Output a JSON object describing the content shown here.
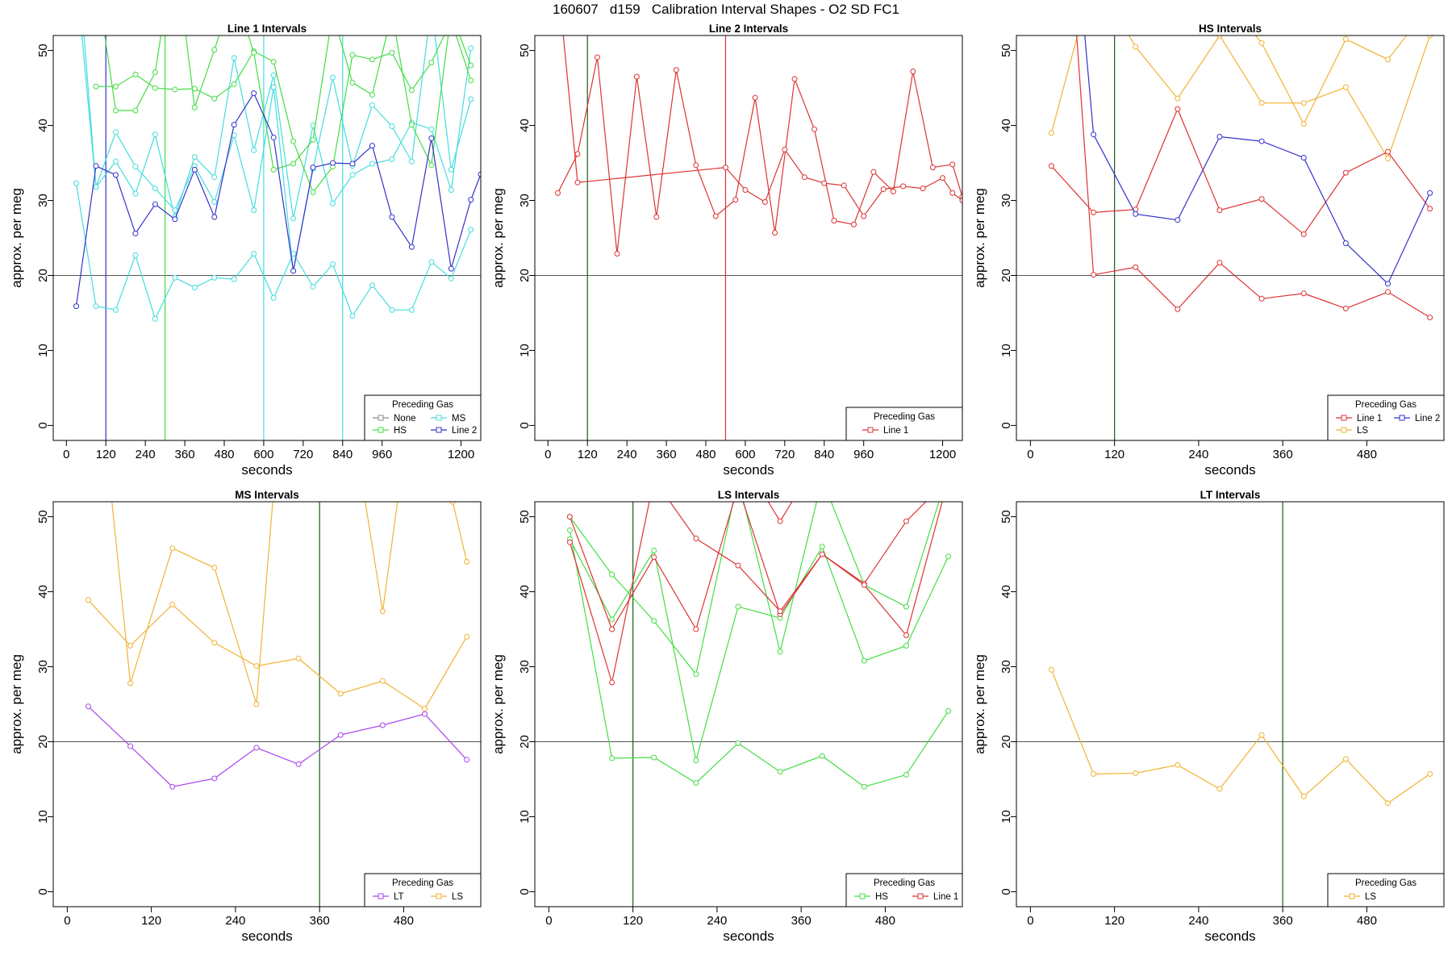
{
  "title": "160607   d159   Calibration Interval Shapes - O2 SD FC1",
  "colors": {
    "None": "#888888",
    "HS": "#44dd44",
    "MS": "#44dddd",
    "Line 2": "#3333cc",
    "Line 1": "#dd3333",
    "LS": "#f2b233",
    "LT": "#aa44ee",
    "hline": "#555555"
  },
  "chart_data": [
    {
      "type": "line",
      "title": "Line 1 Intervals",
      "xlabel": "seconds",
      "ylabel": "approx. per meg",
      "xlim": [
        -40,
        1260
      ],
      "ylim": [
        -2,
        52
      ],
      "xticks": [
        0,
        120,
        240,
        360,
        480,
        600,
        720,
        840,
        960,
        1200
      ],
      "yticks": [
        0,
        10,
        20,
        30,
        40,
        50
      ],
      "hline": 20,
      "vlines": [
        {
          "x": 120,
          "series": "Line 2"
        },
        {
          "x": 300,
          "series": "HS"
        },
        {
          "x": 600,
          "series": "MS"
        },
        {
          "x": 840,
          "series": "MS"
        }
      ],
      "legend": {
        "title": "Preceding Gas",
        "entries": [
          "None",
          "MS",
          "HS",
          "Line 2"
        ],
        "position": "bottom-right",
        "columns": 2
      },
      "series": [
        {
          "name": "MS",
          "x": [
            30,
            90,
            150,
            210,
            270,
            330,
            390,
            450,
            510,
            570,
            630,
            690,
            750,
            810,
            870,
            930,
            990,
            1050,
            1110,
            1170,
            1230
          ],
          "y": [
            32.3,
            15.9,
            15.4,
            22.7,
            14.2,
            19.7,
            18.4,
            19.7,
            19.5,
            22.9,
            17.0,
            22.9,
            18.5,
            21.5,
            14.6,
            18.7,
            15.4,
            15.4,
            21.8,
            19.6,
            26.1
          ]
        },
        {
          "name": "MS",
          "x": [
            30,
            90,
            150,
            210,
            270,
            330,
            390,
            450,
            510,
            570,
            630,
            690,
            750,
            810,
            870,
            930,
            990,
            1050,
            1110,
            1170,
            1230
          ],
          "y": [
            60.0,
            31.8,
            35.2,
            30.9,
            38.8,
            27.8,
            35.8,
            33.1,
            49.0,
            36.7,
            46.7,
            27.6,
            40.0,
            29.6,
            33.4,
            34.9,
            35.5,
            40.4,
            39.5,
            31.4,
            50.3
          ]
        },
        {
          "name": "MS",
          "x": [
            30,
            90,
            150,
            210,
            270,
            330,
            390,
            450,
            510,
            570,
            630,
            690,
            750,
            810,
            870,
            930,
            990,
            1050,
            1110,
            1170,
            1230
          ],
          "y": [
            65.0,
            31.8,
            39.1,
            34.5,
            31.6,
            28.7,
            34.6,
            29.8,
            38.7,
            28.7,
            45.1,
            20.6,
            34.2,
            46.4,
            34.6,
            42.7,
            39.9,
            35.2,
            56.0,
            34.1,
            43.5
          ]
        },
        {
          "name": "HS",
          "x": [
            90,
            150,
            210,
            270,
            330,
            390,
            450,
            510,
            570,
            630,
            690,
            750,
            810,
            870,
            930,
            990,
            1050,
            1110,
            1170,
            1230
          ],
          "y": [
            45.2,
            45.2,
            46.8,
            45.0,
            44.8,
            44.9,
            43.6,
            45.5,
            49.9,
            48.5,
            37.9,
            31.1,
            34.5,
            49.4,
            48.8,
            49.7,
            44.7,
            48.4,
            54.0,
            46.0
          ]
        },
        {
          "name": "HS",
          "x": [
            90,
            150,
            210,
            270,
            330,
            390,
            450,
            510,
            570,
            630,
            690,
            750,
            810,
            870,
            930,
            990,
            1050,
            1110,
            1170,
            1230
          ],
          "y": [
            60.0,
            42.0,
            42.0,
            47.1,
            64.0,
            42.4,
            50.1,
            58.0,
            49.7,
            34.1,
            34.9,
            38.1,
            55.0,
            45.7,
            44.1,
            55.0,
            40.1,
            34.7,
            55.0,
            48.0
          ]
        },
        {
          "name": "Line 2",
          "x": [
            30,
            90,
            150,
            210,
            270,
            330,
            390,
            450,
            510,
            570,
            630,
            690,
            750,
            810,
            870,
            930,
            990,
            1050,
            1110,
            1170,
            1230,
            1260
          ],
          "y": [
            15.9,
            34.6,
            33.4,
            25.6,
            29.5,
            27.5,
            34.1,
            27.8,
            40.1,
            44.3,
            38.4,
            20.6,
            34.4,
            35.0,
            34.9,
            37.3,
            27.8,
            23.8,
            38.3,
            20.9,
            30.1,
            33.5
          ]
        }
      ]
    },
    {
      "type": "line",
      "title": "Line 2 Intervals",
      "xlabel": "seconds",
      "ylabel": "approx. per meg",
      "xlim": [
        -40,
        1260
      ],
      "ylim": [
        -2,
        52
      ],
      "xticks": [
        0,
        120,
        240,
        360,
        480,
        600,
        720,
        840,
        960,
        1200
      ],
      "yticks": [
        0,
        10,
        20,
        30,
        40,
        50
      ],
      "hline": 20,
      "vlines": [
        {
          "x": 120,
          "series": "dark"
        },
        {
          "x": 540,
          "series": "Line 1"
        }
      ],
      "legend": {
        "title": "Preceding Gas",
        "entries": [
          "Line 1"
        ],
        "position": "bottom-right",
        "columns": 1
      },
      "series": [
        {
          "name": "Line 1",
          "x": [
            30,
            90,
            150,
            210,
            270,
            330,
            390,
            450,
            510,
            570,
            630,
            690,
            750,
            810,
            870,
            930,
            990,
            1050,
            1110,
            1170,
            1230,
            1260
          ],
          "y": [
            31.0,
            36.2,
            49.1,
            22.9,
            46.5,
            27.8,
            47.4,
            34.7,
            27.9,
            30.1,
            43.7,
            25.7,
            46.2,
            39.5,
            27.3,
            26.8,
            33.8,
            31.2,
            47.2,
            34.4,
            34.8,
            30.5
          ]
        },
        {
          "name": "Line 1",
          "x": [
            40,
            90,
            540,
            600,
            660,
            720,
            780,
            840,
            900,
            960,
            1020,
            1080,
            1140,
            1200,
            1230,
            1260
          ],
          "y": [
            55.0,
            32.4,
            34.4,
            31.4,
            29.8,
            36.8,
            33.1,
            32.3,
            32.0,
            27.9,
            31.5,
            31.9,
            31.6,
            33.0,
            31.0,
            30.0
          ]
        }
      ]
    },
    {
      "type": "line",
      "title": "HS Intervals",
      "xlabel": "seconds",
      "ylabel": "approx. per meg",
      "xlim": [
        -20,
        590
      ],
      "ylim": [
        -2,
        52
      ],
      "xticks": [
        0,
        120,
        240,
        360,
        480
      ],
      "yticks": [
        0,
        10,
        20,
        30,
        40,
        50
      ],
      "hline": 20,
      "vlines": [
        {
          "x": 120,
          "series": "dark"
        }
      ],
      "legend": {
        "title": "Preceding Gas",
        "entries": [
          "Line 1",
          "Line 2",
          "LS"
        ],
        "position": "bottom-right",
        "columns": 2
      },
      "series": [
        {
          "name": "LS",
          "x": [
            30,
            90,
            150,
            210,
            270,
            330,
            390,
            450,
            510,
            570
          ],
          "y": [
            39.0,
            60.0,
            50.5,
            43.6,
            52.0,
            43.0,
            43.0,
            45.1,
            35.6,
            52.0
          ]
        },
        {
          "name": "LS",
          "x": [
            150,
            210,
            270,
            330,
            390,
            450,
            510,
            570
          ],
          "y": [
            53.0,
            54.0,
            58.0,
            51.0,
            40.2,
            51.5,
            48.8,
            56.0
          ]
        },
        {
          "name": "Line 1",
          "x": [
            30,
            90,
            150,
            210,
            270,
            330,
            390,
            450,
            510,
            570
          ],
          "y": [
            34.6,
            28.4,
            28.8,
            42.2,
            28.7,
            30.2,
            25.5,
            33.7,
            36.5,
            28.9
          ]
        },
        {
          "name": "Line 1",
          "x": [
            60,
            90,
            150,
            210,
            270,
            330,
            390,
            450,
            510,
            570
          ],
          "y": [
            60.0,
            20.1,
            21.1,
            15.5,
            21.7,
            16.9,
            17.6,
            15.6,
            17.8,
            14.4
          ]
        },
        {
          "name": "Line 2",
          "x": [
            70,
            90,
            150,
            210,
            270,
            330,
            390,
            450,
            510,
            570
          ],
          "y": [
            60.0,
            38.8,
            28.2,
            27.4,
            38.5,
            37.9,
            35.7,
            24.3,
            18.9,
            31.0
          ]
        }
      ]
    },
    {
      "type": "line",
      "title": "MS Intervals",
      "xlabel": "seconds",
      "ylabel": "approx. per meg",
      "xlim": [
        -20,
        590
      ],
      "ylim": [
        -2,
        52
      ],
      "xticks": [
        0,
        120,
        240,
        360,
        480
      ],
      "yticks": [
        0,
        10,
        20,
        30,
        40,
        50
      ],
      "hline": 20,
      "vlines": [
        {
          "x": 360,
          "series": "dark"
        }
      ],
      "legend": {
        "title": "Preceding Gas",
        "entries": [
          "LT",
          "LS"
        ],
        "position": "bottom-right",
        "columns": 2
      },
      "series": [
        {
          "name": "LS",
          "x": [
            30,
            90,
            150,
            210,
            270,
            330,
            390,
            450,
            510,
            570
          ],
          "y": [
            38.9,
            32.8,
            38.3,
            33.2,
            30.1,
            31.1,
            26.4,
            28.1,
            24.4,
            34.0
          ]
        },
        {
          "name": "LS",
          "x": [
            55,
            90,
            150,
            210,
            270,
            300
          ],
          "y": [
            60.0,
            27.8,
            45.8,
            43.2,
            25.0,
            60.0
          ]
        },
        {
          "name": "LS",
          "x": [
            420,
            450,
            480
          ],
          "y": [
            55.0,
            37.4,
            58.0
          ]
        },
        {
          "name": "LS",
          "x": [
            550,
            570
          ],
          "y": [
            52.0,
            44.0
          ]
        },
        {
          "name": "LT",
          "x": [
            30,
            90,
            150,
            210,
            270,
            330,
            390,
            450,
            510,
            570
          ],
          "y": [
            24.7,
            19.4,
            14.0,
            15.1,
            19.2,
            17.0,
            20.9,
            22.2,
            23.7,
            17.6
          ]
        }
      ]
    },
    {
      "type": "line",
      "title": "LS Intervals",
      "xlabel": "seconds",
      "ylabel": "approx. per meg",
      "xlim": [
        -20,
        590
      ],
      "ylim": [
        -2,
        52
      ],
      "xticks": [
        0,
        120,
        240,
        360,
        480
      ],
      "yticks": [
        0,
        10,
        20,
        30,
        40,
        50
      ],
      "hline": 20,
      "vlines": [
        {
          "x": 120,
          "series": "dark"
        }
      ],
      "legend": {
        "title": "Preceding Gas",
        "entries": [
          "HS",
          "Line 1"
        ],
        "position": "bottom-right",
        "columns": 2
      },
      "series": [
        {
          "name": "HS",
          "x": [
            30,
            90,
            150,
            210,
            270,
            330,
            390,
            450,
            510,
            570
          ],
          "y": [
            48.2,
            17.8,
            17.9,
            14.5,
            19.8,
            16.0,
            18.1,
            14.0,
            15.6,
            24.1
          ]
        },
        {
          "name": "HS",
          "x": [
            30,
            90,
            150,
            210,
            270,
            330,
            390,
            450,
            510,
            570
          ],
          "y": [
            47.0,
            36.3,
            45.5,
            17.5,
            38.0,
            36.5,
            46.0,
            30.8,
            32.8,
            44.7
          ]
        },
        {
          "name": "HS",
          "x": [
            30,
            90,
            150,
            210,
            270,
            330,
            390,
            450,
            510,
            570
          ],
          "y": [
            50.0,
            42.3,
            36.1,
            29.0,
            55.0,
            32.0,
            55.0,
            40.9,
            38.0,
            56.0
          ]
        },
        {
          "name": "Line 1",
          "x": [
            30,
            90,
            150,
            210,
            270,
            330,
            390,
            450,
            510,
            570
          ],
          "y": [
            50.0,
            35.0,
            44.6,
            35.0,
            54.0,
            37.0,
            45.0,
            41.1,
            49.4,
            55.0
          ]
        },
        {
          "name": "Line 1",
          "x": [
            30,
            90,
            150,
            210,
            270,
            330,
            390,
            450,
            510,
            570
          ],
          "y": [
            46.6,
            27.9,
            55.0,
            47.1,
            43.5,
            37.4,
            45.0,
            40.9,
            34.2,
            55.0
          ]
        },
        {
          "name": "Line 1",
          "x": [
            300,
            330,
            360
          ],
          "y": [
            54.0,
            49.4,
            54.0
          ]
        }
      ]
    },
    {
      "type": "line",
      "title": "LT Intervals",
      "xlabel": "seconds",
      "ylabel": "approx. per meg",
      "xlim": [
        -20,
        590
      ],
      "ylim": [
        -2,
        52
      ],
      "xticks": [
        0,
        120,
        240,
        360,
        480
      ],
      "yticks": [
        0,
        10,
        20,
        30,
        40,
        50
      ],
      "hline": 20,
      "vlines": [
        {
          "x": 360,
          "series": "dark"
        }
      ],
      "legend": {
        "title": "Preceding Gas",
        "entries": [
          "LS"
        ],
        "position": "bottom-right",
        "columns": 1
      },
      "series": [
        {
          "name": "LS",
          "x": [
            30,
            90,
            150,
            210,
            270,
            330,
            390,
            450,
            510,
            570
          ],
          "y": [
            29.6,
            15.7,
            15.8,
            16.9,
            13.7,
            20.9,
            12.7,
            17.7,
            11.8,
            15.7
          ]
        }
      ]
    }
  ]
}
